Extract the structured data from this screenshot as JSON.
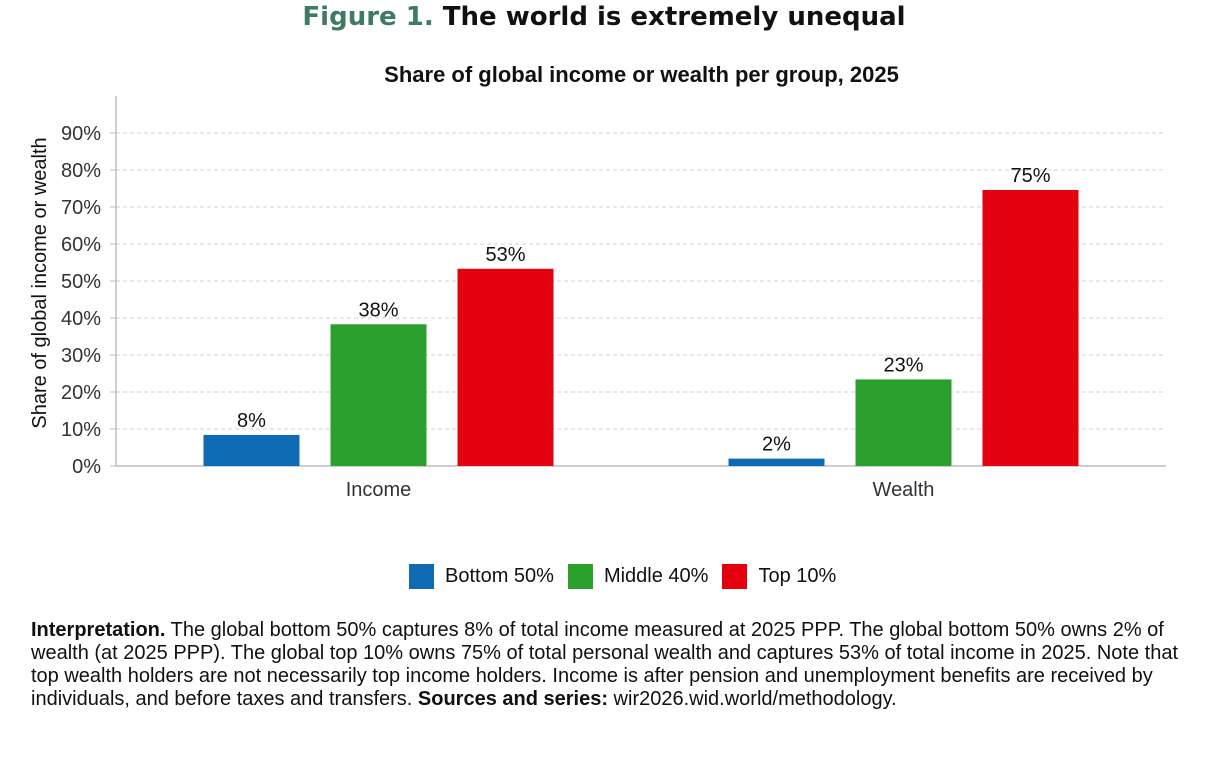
{
  "figure": {
    "label": "Figure 1.",
    "title": "The world is extremely unequal"
  },
  "chart_data": {
    "type": "bar",
    "title": "Share of global income or wealth per group, 2025",
    "xlabel": "",
    "ylabel": "Share of global income or wealth",
    "categories": [
      "Income",
      "Wealth"
    ],
    "series": [
      {
        "name": "Bottom 50%",
        "color": "#0f6ab4",
        "values": [
          8.4,
          2.0
        ],
        "labels": [
          "8%",
          "2%"
        ]
      },
      {
        "name": "Middle 40%",
        "color": "#2ca02c",
        "values": [
          38.3,
          23.4
        ],
        "labels": [
          "38%",
          "23%"
        ]
      },
      {
        "name": "Top 10%",
        "color": "#e3000f",
        "values": [
          53.3,
          74.6
        ],
        "labels": [
          "53%",
          "75%"
        ]
      }
    ],
    "ylim": [
      0,
      100
    ],
    "yticks": [
      0,
      10,
      20,
      30,
      40,
      50,
      60,
      70,
      80,
      90
    ],
    "ytick_labels": [
      "0%",
      "10%",
      "20%",
      "30%",
      "40%",
      "50%",
      "60%",
      "70%",
      "80%",
      "90%"
    ],
    "grid": true,
    "legend_position": "bottom"
  },
  "interpretation": {
    "label": "Interpretation.",
    "text": " The global bottom 50% captures 8% of total income measured at 2025 PPP. The global bottom 50% owns 2% of wealth (at 2025 PPP). The global top 10% owns 75% of total personal wealth and captures 53% of total income in 2025. Note that top wealth holders are not necessarily top income holders. Income is after pension and unemployment benefits are received by individuals, and before taxes and transfers. ",
    "sources_label": "Sources and series:",
    "sources_text": " wir2026.wid.world/methodology."
  }
}
